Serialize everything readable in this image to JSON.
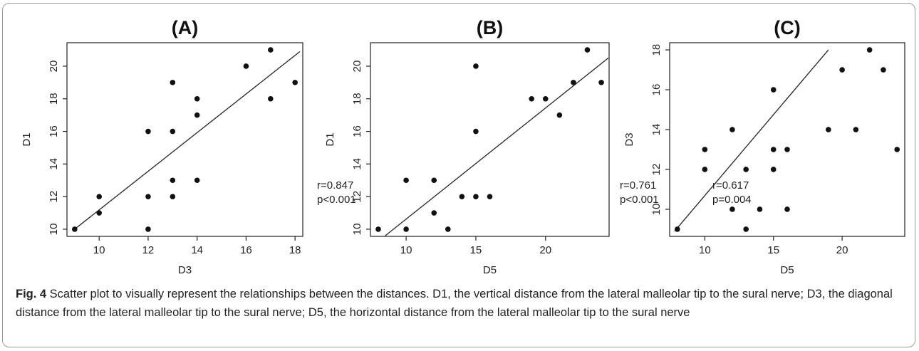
{
  "chart_data": [
    {
      "type": "scatter",
      "title": "(A)",
      "xlabel": "D3",
      "ylabel": "D1",
      "xlim": [
        9,
        18
      ],
      "ylim": [
        10,
        21
      ],
      "xticks": [
        10,
        12,
        14,
        16,
        18
      ],
      "yticks": [
        10,
        12,
        14,
        16,
        18,
        20
      ],
      "points": [
        {
          "x": 9,
          "y": 10
        },
        {
          "x": 10,
          "y": 11
        },
        {
          "x": 10,
          "y": 12
        },
        {
          "x": 12,
          "y": 10
        },
        {
          "x": 12,
          "y": 12
        },
        {
          "x": 12,
          "y": 16
        },
        {
          "x": 13,
          "y": 12
        },
        {
          "x": 13,
          "y": 13
        },
        {
          "x": 13,
          "y": 16
        },
        {
          "x": 13,
          "y": 19
        },
        {
          "x": 14,
          "y": 13
        },
        {
          "x": 14,
          "y": 17
        },
        {
          "x": 14,
          "y": 18
        },
        {
          "x": 16,
          "y": 20
        },
        {
          "x": 17,
          "y": 18
        },
        {
          "x": 17,
          "y": 21
        },
        {
          "x": 18,
          "y": 19
        }
      ],
      "fit_line": [
        {
          "x": 9,
          "y": 10
        },
        {
          "x": 18.2,
          "y": 20.9
        }
      ],
      "annotation": [
        "r=0.847",
        "p<0.001"
      ]
    },
    {
      "type": "scatter",
      "title": "(B)",
      "xlabel": "D5",
      "ylabel": "D1",
      "xlim": [
        8,
        24
      ],
      "ylim": [
        10,
        21
      ],
      "xticks": [
        10,
        15,
        20
      ],
      "yticks": [
        10,
        12,
        14,
        16,
        18,
        20
      ],
      "points": [
        {
          "x": 8,
          "y": 10
        },
        {
          "x": 10,
          "y": 10
        },
        {
          "x": 10,
          "y": 13
        },
        {
          "x": 12,
          "y": 11
        },
        {
          "x": 12,
          "y": 13
        },
        {
          "x": 13,
          "y": 10
        },
        {
          "x": 14,
          "y": 12
        },
        {
          "x": 15,
          "y": 12
        },
        {
          "x": 15,
          "y": 16
        },
        {
          "x": 15,
          "y": 20
        },
        {
          "x": 16,
          "y": 12
        },
        {
          "x": 19,
          "y": 18
        },
        {
          "x": 20,
          "y": 18
        },
        {
          "x": 21,
          "y": 17
        },
        {
          "x": 22,
          "y": 19
        },
        {
          "x": 23,
          "y": 21
        },
        {
          "x": 24,
          "y": 19
        }
      ],
      "fit_line": [
        {
          "x": 8.5,
          "y": 9.6
        },
        {
          "x": 24.5,
          "y": 20.5
        }
      ],
      "annotation": [
        "r=0.761",
        "p<0.001"
      ]
    },
    {
      "type": "scatter",
      "title": "(C)",
      "xlabel": "D5",
      "ylabel": "D3",
      "xlim": [
        8,
        24
      ],
      "ylim": [
        9,
        18
      ],
      "xticks": [
        10,
        15,
        20
      ],
      "yticks": [
        10,
        12,
        14,
        16,
        18
      ],
      "points": [
        {
          "x": 8,
          "y": 9
        },
        {
          "x": 10,
          "y": 12
        },
        {
          "x": 10,
          "y": 13
        },
        {
          "x": 12,
          "y": 10
        },
        {
          "x": 12,
          "y": 14
        },
        {
          "x": 13,
          "y": 9
        },
        {
          "x": 13,
          "y": 12
        },
        {
          "x": 14,
          "y": 10
        },
        {
          "x": 15,
          "y": 12
        },
        {
          "x": 15,
          "y": 13
        },
        {
          "x": 15,
          "y": 16
        },
        {
          "x": 16,
          "y": 10
        },
        {
          "x": 16,
          "y": 13
        },
        {
          "x": 19,
          "y": 14
        },
        {
          "x": 20,
          "y": 17
        },
        {
          "x": 21,
          "y": 14
        },
        {
          "x": 22,
          "y": 18
        },
        {
          "x": 23,
          "y": 17
        },
        {
          "x": 24,
          "y": 13
        }
      ],
      "fit_line": [
        {
          "x": 7.8,
          "y": 8.9
        },
        {
          "x": 19.0,
          "y": 18.0
        }
      ],
      "annotation": [
        "r=0.617",
        "p=0.004"
      ]
    }
  ],
  "caption": {
    "label": "Fig. 4",
    "text": " Scatter plot to visually represent the relationships between the distances. D1, the vertical distance from the lateral malleolar tip to the sural nerve; D3, the diagonal distance from the lateral malleolar tip to the sural nerve; D5, the horizontal distance from the lateral malleolar tip to the sural nerve"
  }
}
